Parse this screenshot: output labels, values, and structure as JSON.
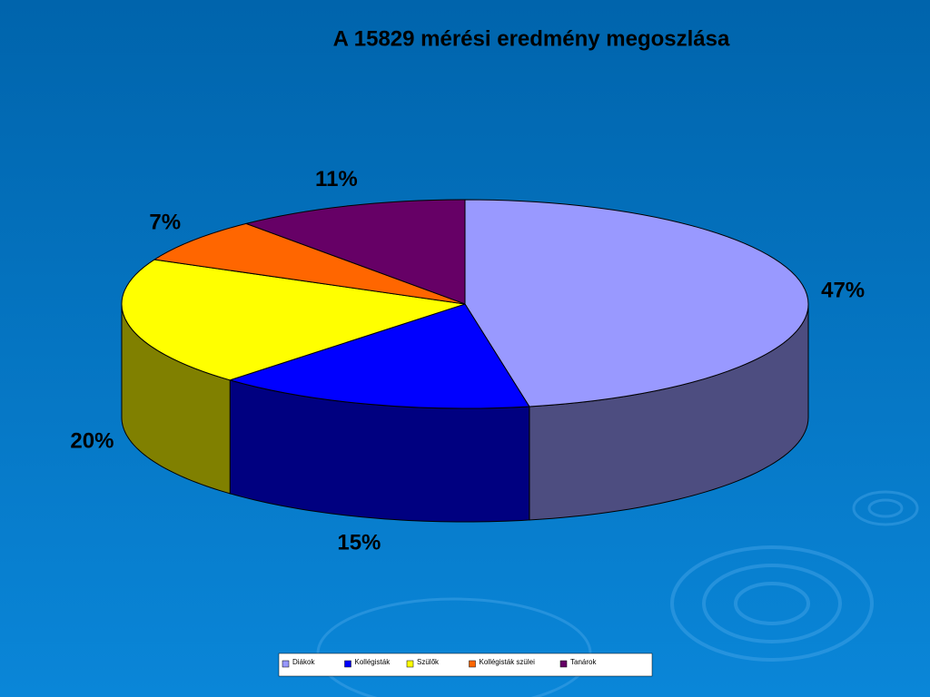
{
  "chart_data": {
    "type": "pie",
    "title": "A 15829 mérési eredmény megoszlása",
    "categories": [
      "Diákok",
      "Kollégisták",
      "Szülők",
      "Kollégisták szülei",
      "Tanárok"
    ],
    "values": [
      47,
      15,
      20,
      7,
      11
    ],
    "value_labels": [
      "47%",
      "15%",
      "20%",
      "7%",
      "11%"
    ],
    "colors": [
      "#9999ff",
      "#0000ff",
      "#ffff00",
      "#ff6600",
      "#660066"
    ],
    "legend": "bottom"
  }
}
